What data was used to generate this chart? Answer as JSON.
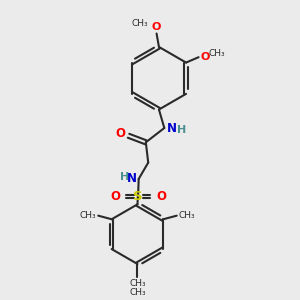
{
  "background_color": "#ebebeb",
  "bond_color": "#2a2a2a",
  "oxygen_color": "#ff0000",
  "nitrogen_color": "#0000cc",
  "sulfur_color": "#cccc00",
  "nh_color": "#4a9090",
  "carbon_color": "#2a2a2a",
  "figsize": [
    3.0,
    3.0
  ],
  "dpi": 100,
  "xlim": [
    0,
    10
  ],
  "ylim": [
    0,
    10
  ]
}
